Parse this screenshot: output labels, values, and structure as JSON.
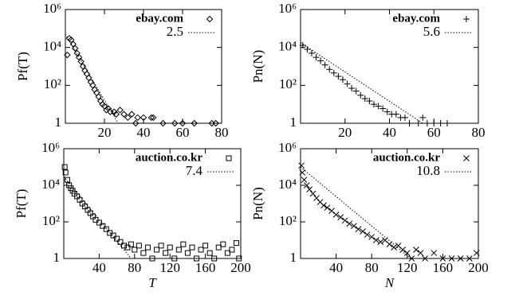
{
  "chart_data": [
    {
      "type": "scatter",
      "ylabel": "Pf(T)",
      "log_y": true,
      "xlim": [
        0,
        80
      ],
      "ylim": [
        1,
        1000000
      ],
      "xticks": [
        20,
        40,
        60,
        80
      ],
      "yticks": [
        1,
        {
          "value": 100,
          "label": "10²"
        },
        {
          "value": 10000,
          "label": "10⁴"
        },
        {
          "value": 1000000,
          "label": "10⁶"
        }
      ],
      "series": [
        {
          "name": "ebay.com",
          "marker": "diamond",
          "color": "#000000",
          "x": [
            1,
            2,
            3,
            4,
            5,
            6,
            7,
            8,
            9,
            10,
            11,
            12,
            13,
            14,
            15,
            16,
            17,
            18,
            19,
            20,
            21,
            22,
            23,
            25,
            26,
            28,
            30,
            32,
            34,
            36,
            37,
            40,
            44,
            45,
            50,
            56,
            60,
            66,
            75,
            77
          ],
          "values": [
            4000,
            30000,
            25000,
            15000,
            9000,
            5000,
            3000,
            1800,
            1000,
            600,
            400,
            250,
            150,
            100,
            60,
            40,
            25,
            15,
            10,
            8,
            5,
            6,
            4,
            4,
            3,
            5,
            3,
            2,
            3,
            1,
            2,
            2,
            2,
            2,
            1,
            1,
            1,
            1,
            1,
            1
          ]
        },
        {
          "name": "2.5",
          "marker": "dotted",
          "color": "#000000",
          "x": [
            0,
            27
          ],
          "values": [
            50000,
            1
          ]
        }
      ]
    },
    {
      "type": "scatter",
      "ylabel": "Pn(N)",
      "log_y": true,
      "xlim": [
        0,
        80
      ],
      "ylim": [
        1,
        1000000
      ],
      "xticks": [
        20,
        40,
        60,
        80
      ],
      "yticks": [
        1,
        {
          "value": 100,
          "label": "10²"
        },
        {
          "value": 10000,
          "label": "10⁴"
        },
        {
          "value": 1000000,
          "label": "10⁶"
        }
      ],
      "series": [
        {
          "name": "ebay.com",
          "marker": "plus",
          "color": "#000000",
          "x": [
            1,
            3,
            5,
            7,
            9,
            11,
            13,
            15,
            17,
            19,
            21,
            23,
            25,
            27,
            29,
            31,
            33,
            35,
            37,
            39,
            41,
            43,
            45,
            47,
            49,
            53,
            55,
            57,
            60,
            63,
            66
          ],
          "values": [
            13000,
            8000,
            5000,
            3000,
            2000,
            1200,
            700,
            450,
            300,
            200,
            120,
            70,
            50,
            30,
            20,
            15,
            10,
            8,
            6,
            4,
            3,
            3,
            2,
            2,
            1,
            1,
            2,
            1,
            1,
            1,
            1
          ]
        },
        {
          "name": "5.6",
          "marker": "dotted",
          "color": "#000000",
          "x": [
            0,
            55
          ],
          "values": [
            18000,
            1
          ]
        }
      ]
    },
    {
      "type": "scatter",
      "ylabel": "Pf(T)",
      "xlabel": "T",
      "log_y": true,
      "xlim": [
        0,
        200
      ],
      "ylim": [
        1,
        1000000
      ],
      "xticks": [
        40,
        80,
        120,
        160,
        200
      ],
      "yticks": [
        1,
        {
          "value": 100,
          "label": "10²"
        },
        {
          "value": 10000,
          "label": "10⁴"
        },
        {
          "value": 1000000,
          "label": "10⁶"
        }
      ],
      "series": [
        {
          "name": "auction.co.kr",
          "marker": "square",
          "color": "#000000",
          "x": [
            1,
            2,
            4,
            6,
            8,
            10,
            12,
            15,
            18,
            21,
            24,
            27,
            30,
            33,
            36,
            40,
            44,
            48,
            52,
            56,
            60,
            64,
            68,
            72,
            76,
            80,
            85,
            90,
            95,
            100,
            105,
            110,
            115,
            120,
            125,
            130,
            135,
            140,
            145,
            150,
            155,
            160,
            165,
            170,
            175,
            180,
            185,
            190,
            195,
            198
          ],
          "values": [
            100000,
            50000,
            20000,
            10000,
            7000,
            5000,
            3500,
            2500,
            1600,
            1000,
            700,
            450,
            300,
            200,
            130,
            90,
            60,
            40,
            25,
            18,
            12,
            8,
            5,
            4,
            6,
            3,
            5,
            2,
            4,
            1,
            3,
            5,
            2,
            4,
            1,
            3,
            6,
            2,
            4,
            1,
            3,
            5,
            2,
            1,
            4,
            6,
            2,
            3,
            7,
            1
          ]
        },
        {
          "name": "7.4",
          "marker": "dotted",
          "color": "#000000",
          "x": [
            0,
            76
          ],
          "values": [
            30000,
            1
          ]
        }
      ]
    },
    {
      "type": "scatter",
      "ylabel": "Pn(N)",
      "xlabel": "N",
      "log_y": true,
      "xlim": [
        0,
        200
      ],
      "ylim": [
        1,
        1000000
      ],
      "xticks": [
        40,
        80,
        120,
        160,
        200
      ],
      "yticks": [
        1,
        {
          "value": 100,
          "label": "10²"
        },
        {
          "value": 10000,
          "label": "10⁴"
        },
        {
          "value": 1000000,
          "label": "10⁶"
        }
      ],
      "series": [
        {
          "name": "auction.co.kr",
          "marker": "cross",
          "color": "#000000",
          "x": [
            1,
            2,
            4,
            7,
            10,
            14,
            18,
            22,
            26,
            30,
            35,
            40,
            45,
            50,
            55,
            60,
            65,
            70,
            75,
            80,
            85,
            90,
            95,
            100,
            105,
            110,
            115,
            120,
            125,
            130,
            135,
            140,
            150,
            160,
            170,
            180,
            190,
            198
          ],
          "values": [
            120000,
            50000,
            20000,
            10000,
            6000,
            3500,
            2000,
            1200,
            800,
            600,
            400,
            250,
            180,
            120,
            80,
            60,
            40,
            30,
            20,
            15,
            10,
            8,
            10,
            6,
            4,
            5,
            3,
            2,
            1,
            3,
            2,
            1,
            2,
            1,
            1,
            1,
            1,
            2
          ]
        },
        {
          "name": "10.8",
          "marker": "dotted",
          "color": "#000000",
          "x": [
            0,
            124
          ],
          "values": [
            100000,
            1
          ]
        }
      ]
    }
  ]
}
